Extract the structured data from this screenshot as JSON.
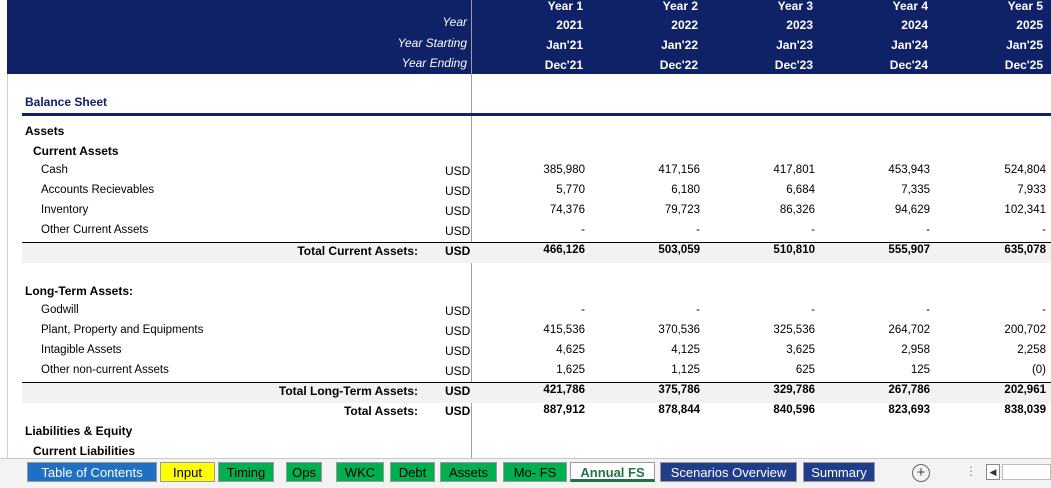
{
  "header": {
    "row_labels": {
      "year": "Year",
      "year_starting": "Year Starting",
      "year_ending": "Year Ending"
    },
    "columns": [
      {
        "year_num": "Year 1",
        "year": "2021",
        "start": "Jan'21",
        "end": "Dec'21"
      },
      {
        "year_num": "Year 2",
        "year": "2022",
        "start": "Jan'22",
        "end": "Dec'22"
      },
      {
        "year_num": "Year 3",
        "year": "2023",
        "start": "Jan'23",
        "end": "Dec'23"
      },
      {
        "year_num": "Year 4",
        "year": "2024",
        "start": "Jan'24",
        "end": "Dec'24"
      },
      {
        "year_num": "Year 5",
        "year": "2025",
        "start": "Jan'25",
        "end": "Dec'25"
      }
    ]
  },
  "sheet": {
    "title": "Balance Sheet",
    "assets_heading": "Assets",
    "current_assets_heading": "Current Assets",
    "current_assets": [
      {
        "label": "Cash",
        "unit": "USD",
        "values": [
          "385,980",
          "417,156",
          "417,801",
          "453,943",
          "524,804"
        ]
      },
      {
        "label": "Accounts Recievables",
        "unit": "USD",
        "values": [
          "5,770",
          "6,180",
          "6,684",
          "7,335",
          "7,933"
        ]
      },
      {
        "label": "Inventory",
        "unit": "USD",
        "values": [
          "74,376",
          "79,723",
          "86,326",
          "94,629",
          "102,341"
        ]
      },
      {
        "label": "Other Current Assets",
        "unit": "USD",
        "values": [
          "-",
          "-",
          "-",
          "-",
          "-"
        ]
      }
    ],
    "total_current_assets": {
      "label": "Total Current Assets:",
      "unit": "USD",
      "values": [
        "466,126",
        "503,059",
        "510,810",
        "555,907",
        "635,078"
      ]
    },
    "long_term_heading": "Long-Term Assets:",
    "long_term_assets": [
      {
        "label": "Godwill",
        "unit": "USD",
        "values": [
          "-",
          "-",
          "-",
          "-",
          "-"
        ]
      },
      {
        "label": "Plant, Property and Equipments",
        "unit": "USD",
        "values": [
          "415,536",
          "370,536",
          "325,536",
          "264,702",
          "200,702"
        ]
      },
      {
        "label": "Intagible Assets",
        "unit": "USD",
        "values": [
          "4,625",
          "4,125",
          "3,625",
          "2,958",
          "2,258"
        ]
      },
      {
        "label": "Other non-current Assets",
        "unit": "USD",
        "values": [
          "1,625",
          "1,125",
          "625",
          "125",
          "(0)"
        ]
      }
    ],
    "total_long_term_assets": {
      "label": "Total Long-Term Assets:",
      "unit": "USD",
      "values": [
        "421,786",
        "375,786",
        "329,786",
        "267,786",
        "202,961"
      ]
    },
    "total_assets": {
      "label": "Total Assets:",
      "unit": "USD",
      "values": [
        "887,912",
        "878,844",
        "840,596",
        "823,693",
        "838,039"
      ]
    },
    "liabilities_heading": "Liabilities & Equity",
    "current_liabilities_heading": "Current Liabilities"
  },
  "tabs": [
    {
      "label": "Table of Contents",
      "color": "#1f6fc5",
      "text_color": "#ffffff"
    },
    {
      "label": "Input",
      "color": "#ffff00",
      "text_color": "#000000"
    },
    {
      "label": "Timing",
      "color": "#00b050",
      "text_color": "#000000"
    },
    {
      "label": "Ops",
      "color": "#00b050",
      "text_color": "#000000"
    },
    {
      "label": "WKC",
      "color": "#00b050",
      "text_color": "#000000"
    },
    {
      "label": "Debt",
      "color": "#00b050",
      "text_color": "#000000"
    },
    {
      "label": "Assets",
      "color": "#00b050",
      "text_color": "#000000"
    },
    {
      "label": "Mo- FS",
      "color": "#00b050",
      "text_color": "#000000"
    },
    {
      "label": "Annual FS",
      "color": "#ffffff",
      "text_color": "#217346",
      "active": true
    },
    {
      "label": "Scenarios Overview",
      "color": "#1f3d8a",
      "text_color": "#ffffff"
    },
    {
      "label": "Summary",
      "color": "#1f3d8a",
      "text_color": "#ffffff"
    }
  ],
  "tabbar_controls": {
    "add_sheet_icon": "plus-circle-icon",
    "more_icon": "vertical-dots-icon",
    "scroll_left_icon": "triangle-left-icon"
  },
  "colors": {
    "header_bg": "#0f2167",
    "total_shade": "#f2f2f2"
  }
}
